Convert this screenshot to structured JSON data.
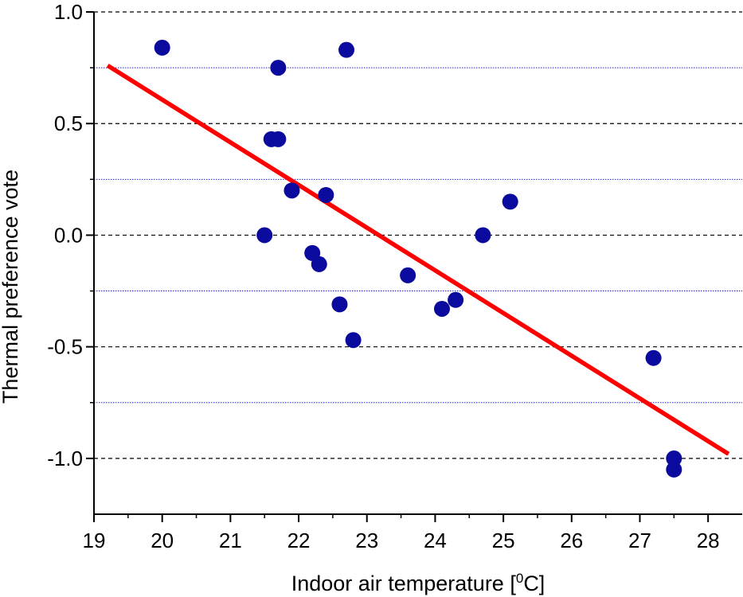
{
  "chart_data": {
    "type": "scatter",
    "xlabel": "Indoor air temperature [",
    "xlabel_sup": "0",
    "xlabel_end": "C]",
    "ylabel": "Thermal preference vote",
    "xlim": [
      19,
      28.5
    ],
    "ylim": [
      -1.25,
      1.0
    ],
    "xticks": [
      19,
      20,
      21,
      22,
      23,
      24,
      25,
      26,
      27,
      28
    ],
    "yticks": [
      1.0,
      0.5,
      0.0,
      -0.5,
      -1.0
    ],
    "ytick_labels": [
      "1.0",
      "0.5",
      "0.0",
      "-0.5",
      "-1.0"
    ],
    "major_grid_y": [
      1.0,
      0.5,
      0.0,
      -0.5,
      -1.0
    ],
    "minor_grid_y": [
      0.75,
      0.25,
      -0.25,
      -0.75
    ],
    "grid": true,
    "colors": {
      "points": "#0a0a9e",
      "fit_line": "#ff0000",
      "major_grid": "#000000",
      "minor_grid": "#2222cc"
    },
    "points": [
      {
        "x": 20.0,
        "y": 0.84
      },
      {
        "x": 21.5,
        "y": 0.0
      },
      {
        "x": 21.6,
        "y": 0.43
      },
      {
        "x": 21.7,
        "y": 0.43
      },
      {
        "x": 21.7,
        "y": 0.75
      },
      {
        "x": 21.9,
        "y": 0.2
      },
      {
        "x": 22.2,
        "y": -0.08
      },
      {
        "x": 22.3,
        "y": -0.13
      },
      {
        "x": 22.4,
        "y": 0.18
      },
      {
        "x": 22.6,
        "y": -0.31
      },
      {
        "x": 22.7,
        "y": 0.83
      },
      {
        "x": 22.8,
        "y": -0.47
      },
      {
        "x": 23.6,
        "y": -0.18
      },
      {
        "x": 24.1,
        "y": -0.33
      },
      {
        "x": 24.3,
        "y": -0.29
      },
      {
        "x": 24.7,
        "y": 0.0
      },
      {
        "x": 25.1,
        "y": 0.15
      },
      {
        "x": 27.2,
        "y": -0.55
      },
      {
        "x": 27.5,
        "y": -1.0
      },
      {
        "x": 27.5,
        "y": -1.05
      }
    ],
    "fit_line": {
      "x": [
        19.2,
        28.3
      ],
      "y": [
        0.76,
        -0.98
      ]
    }
  }
}
